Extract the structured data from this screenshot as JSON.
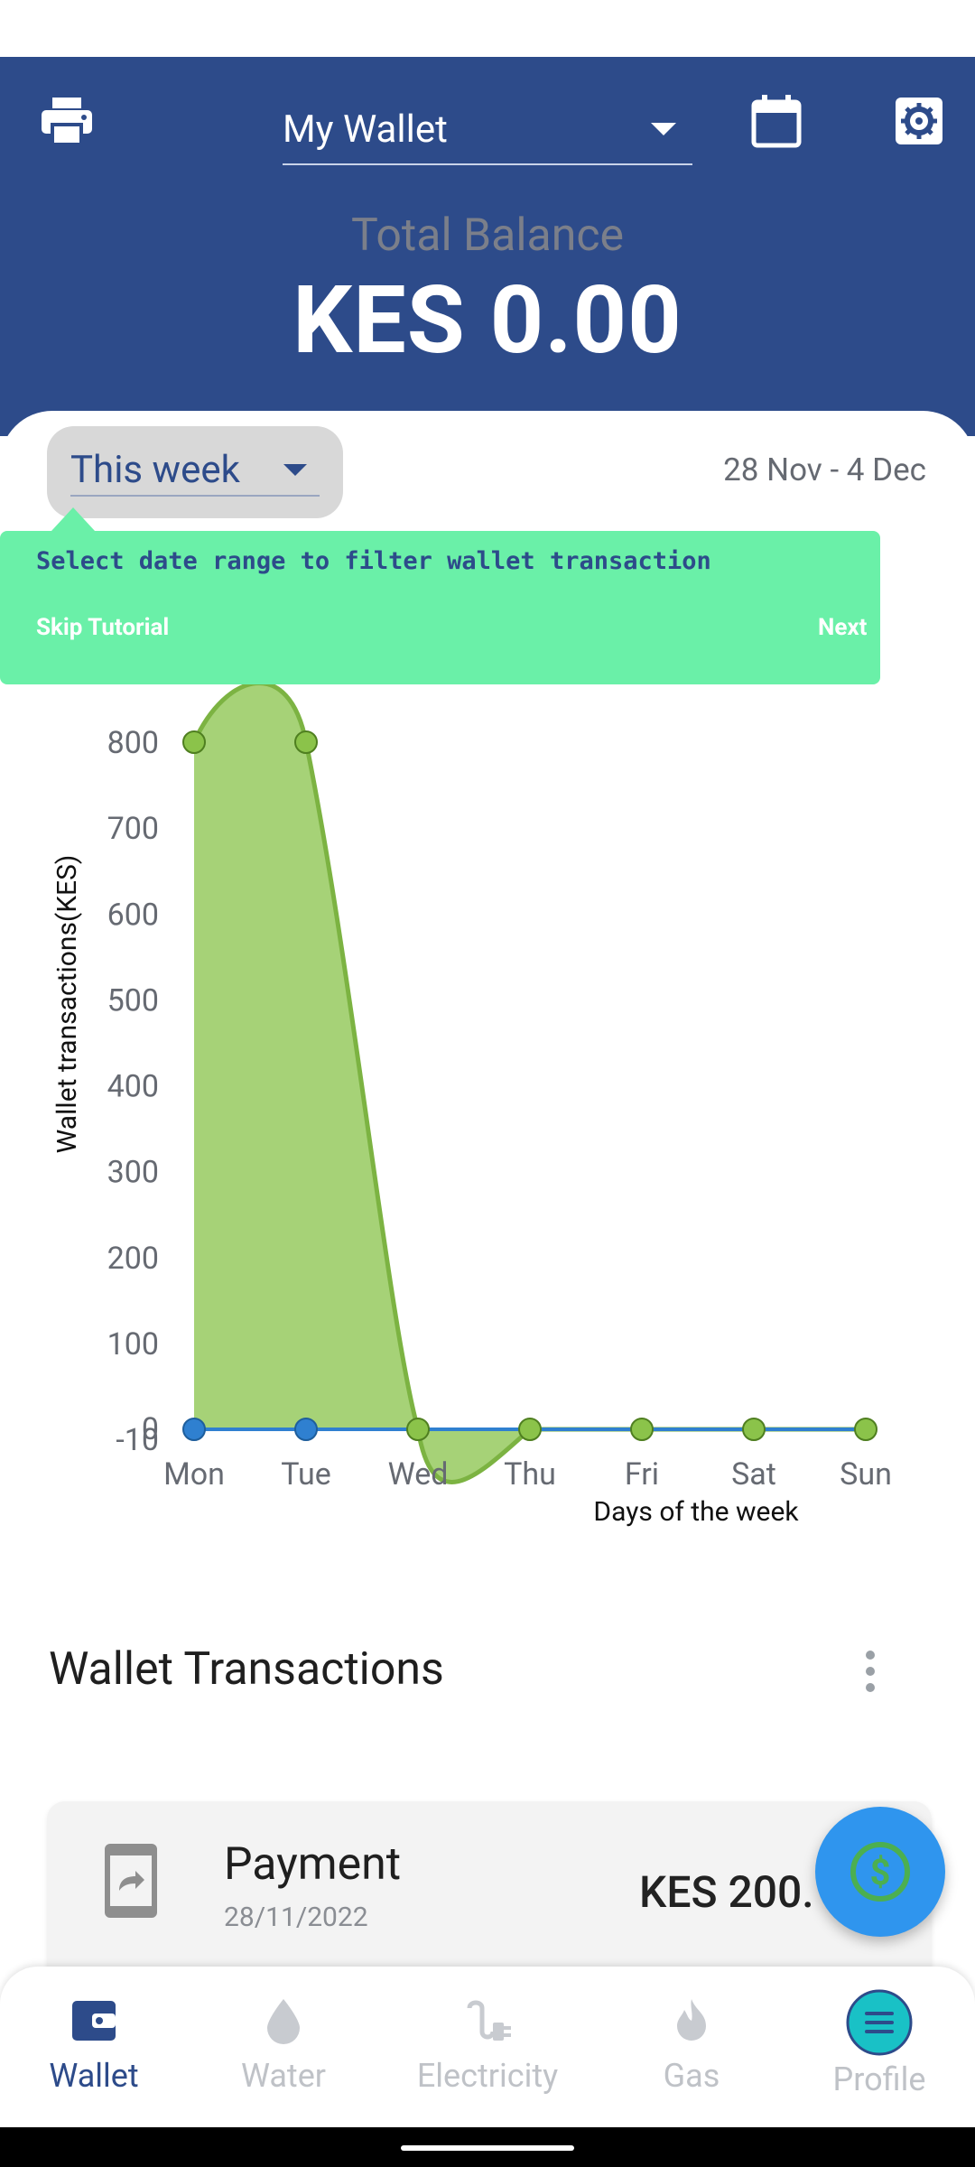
{
  "header": {
    "wallet_name": "My Wallet",
    "balance_label": "Total Balance",
    "balance_value": "KES 0.00"
  },
  "filter": {
    "range_label": "This week",
    "date_range": "28 Nov - 4 Dec"
  },
  "tutorial": {
    "message": "Select date range to filter wallet transaction",
    "skip_label": "Skip Tutorial",
    "next_label": "Next"
  },
  "chart_data": {
    "type": "area",
    "categories": [
      "Mon",
      "Tue",
      "Wed",
      "Thu",
      "Fri",
      "Sat",
      "Sun"
    ],
    "series": [
      {
        "color": "#7cb342",
        "values": [
          800,
          800,
          0,
          0,
          0,
          0,
          0
        ]
      },
      {
        "color": "#2f80d0",
        "values": [
          0,
          0,
          0,
          0,
          0,
          0,
          0
        ]
      }
    ],
    "xlabel": "Days of the week",
    "ylabel": "Wallet transactions(KES)",
    "y_ticks": [
      800,
      700,
      600,
      500,
      400,
      300,
      200,
      100,
      0,
      -10
    ],
    "ylim": [
      -10,
      860
    ],
    "grid": false,
    "legend": "none"
  },
  "transactions": {
    "title": "Wallet Transactions",
    "items": [
      {
        "type": "Payment",
        "date": "28/11/2022",
        "amount": "KES 200."
      }
    ]
  },
  "nav": {
    "items": [
      {
        "label": "Wallet"
      },
      {
        "label": "Water"
      },
      {
        "label": "Electricity"
      },
      {
        "label": "Gas"
      },
      {
        "label": "Profile"
      }
    ]
  },
  "colors": {
    "primary": "#2d4b8a",
    "tooltip": "#6af0a8",
    "fab": "#2f95ee",
    "green_series": "#7cb342"
  }
}
